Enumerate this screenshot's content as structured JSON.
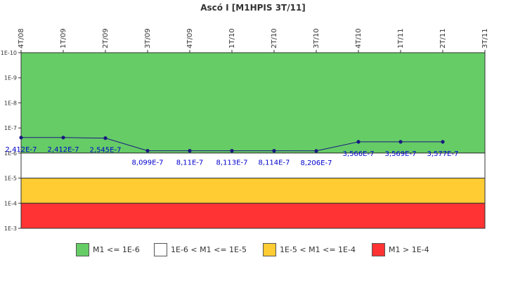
{
  "chart_data": {
    "type": "line",
    "title": "Ascó I [M1HPIS 3T/11]",
    "categories": [
      "4T/08",
      "1T/09",
      "2T/09",
      "3T/09",
      "4T/09",
      "1T/10",
      "2T/10",
      "3T/10",
      "4T/10",
      "1T/11",
      "2T/11",
      "3T/11"
    ],
    "series": [
      {
        "values": [
          2.412e-07,
          2.412e-07,
          2.545e-07,
          8.099e-07,
          8.11e-07,
          8.113e-07,
          8.114e-07,
          8.206e-07,
          3.566e-07,
          3.569e-07,
          3.577e-07,
          null
        ],
        "color": "#1a1a80"
      }
    ],
    "data_labels": [
      "2,412E-7",
      "2,412E-7",
      "2,545E-7",
      "8,099E-7",
      "8,11E-7",
      "8,113E-7",
      "8,114E-7",
      "8,206E-7",
      "3,566E-7",
      "3,569E-7",
      "3,577E-7"
    ],
    "y_scale": "log",
    "y_inverted": true,
    "ylim": [
      1e-10,
      0.001
    ],
    "y_ticks": [
      {
        "value": 1e-10,
        "label": "1E-10"
      },
      {
        "value": 1e-09,
        "label": "1E-9"
      },
      {
        "value": 1e-08,
        "label": "1E-8"
      },
      {
        "value": 1e-07,
        "label": "1E-7"
      },
      {
        "value": 1e-06,
        "label": "1E-6"
      },
      {
        "value": 1e-05,
        "label": "1E-5"
      },
      {
        "value": 0.0001,
        "label": "1E-4"
      },
      {
        "value": 0.001,
        "label": "1E-3"
      }
    ],
    "bands": [
      {
        "from": 1e-10,
        "to": 1e-06,
        "color": "#66cc66",
        "label": "M1 <= 1E-6"
      },
      {
        "from": 1e-06,
        "to": 1e-05,
        "color": "#ffffff",
        "label": "1E-6 < M1 <= 1E-5"
      },
      {
        "from": 1e-05,
        "to": 0.0001,
        "color": "#ffcc33",
        "label": "1E-5 < M1 <= 1E-4"
      },
      {
        "from": 0.0001,
        "to": 0.001,
        "color": "#ff3333",
        "label": "M1 > 1E-4"
      }
    ],
    "x_tick_position": "top",
    "legend_position": "bottom",
    "grid": false,
    "colors": {
      "label_text": "#0000cc",
      "line": "#1a1a80",
      "axis_text": "#333333"
    }
  }
}
